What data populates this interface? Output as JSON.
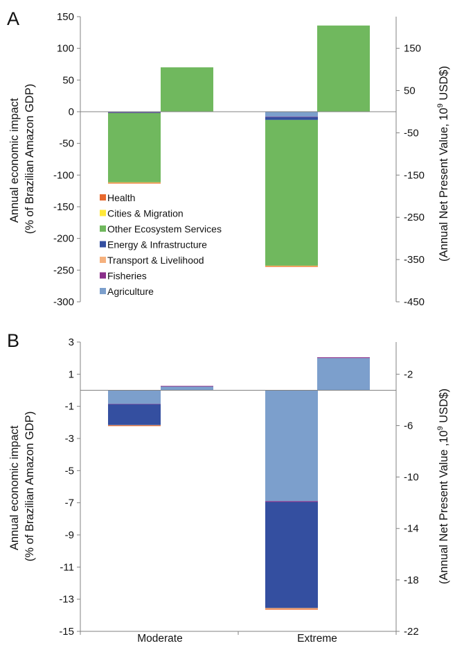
{
  "colors": {
    "health": "#e8692e",
    "cities_migration": "#ffe839",
    "other_ecosystem": "#70b85e",
    "energy_infra": "#344fa0",
    "transport_livelihood": "#f5b17e",
    "fisheries": "#8a2f8a",
    "agriculture": "#7c9fcc",
    "axis": "#808080"
  },
  "chart_data": [
    {
      "type": "bar",
      "stacked": true,
      "panel_label": "A",
      "categories": [
        "Moderate",
        "Extreme"
      ],
      "ylabel_left": [
        "Annual economic impact",
        "(% of Brazilian Amazon GDP)"
      ],
      "ylabel_right": [
        "(Annual Net Present Value, 10",
        "9",
        " USD$)"
      ],
      "ylim_left": [
        -300,
        150
      ],
      "yticks_left": [
        "150",
        "100",
        "50",
        "0",
        "-50",
        "-100",
        "-150",
        "-200",
        "-250",
        "-300"
      ],
      "ylim_right": [
        -450,
        225
      ],
      "yticks_right": [
        {
          "value": 150,
          "label": "150"
        },
        {
          "value": 50,
          "label": "50"
        },
        {
          "value": -50,
          "label": "-50"
        },
        {
          "value": -150,
          "label": "-150"
        },
        {
          "value": -250,
          "label": "-250"
        },
        {
          "value": -350,
          "label": "-350"
        },
        {
          "value": -450,
          "label": "-450"
        }
      ],
      "legend_position": "lower-left",
      "legend": [
        {
          "name": "Health",
          "color": "#e8692e"
        },
        {
          "name": "Cities & Migration",
          "color": "#ffe839"
        },
        {
          "name": "Other Ecosystem Services",
          "color": "#70b85e"
        },
        {
          "name": "Energy & Infrastructure",
          "color": "#344fa0"
        },
        {
          "name": "Transport & Livelihood",
          "color": "#f5b17e"
        },
        {
          "name": "Fisheries",
          "color": "#8a2f8a"
        },
        {
          "name": "Agriculture",
          "color": "#7c9fcc"
        }
      ],
      "series": [
        {
          "name": "Agriculture",
          "color": "#7c9fcc",
          "left": [
            -1.0,
            -8.0
          ],
          "right": [
            0,
            0
          ]
        },
        {
          "name": "Fisheries",
          "color": "#8a2f8a",
          "left": [
            -0.5,
            -0.5
          ],
          "right": [
            0,
            0
          ]
        },
        {
          "name": "Energy & Infrastructure",
          "color": "#344fa0",
          "left": [
            -0.5,
            -4.5
          ],
          "right": [
            0,
            0
          ]
        },
        {
          "name": "Other Ecosystem Services",
          "color": "#70b85e",
          "left": [
            -109.5,
            -230.0
          ],
          "right": [
            70,
            136
          ]
        },
        {
          "name": "Transport & Livelihood",
          "color": "#f5b17e",
          "left": [
            -0.5,
            -0.5
          ],
          "right": [
            0,
            0
          ]
        },
        {
          "name": "Cities & Migration",
          "color": "#ffe839",
          "left": [
            -0.3,
            -0.3
          ],
          "right": [
            0,
            0
          ]
        },
        {
          "name": "Health",
          "color": "#e8692e",
          "left": [
            -0.7,
            -0.7
          ],
          "right": [
            0,
            0
          ]
        }
      ]
    },
    {
      "type": "bar",
      "stacked": true,
      "panel_label": "B",
      "categories": [
        "Moderate",
        "Extreme"
      ],
      "ylabel_left": [
        "Annual economic impact",
        "(% of Brazilian Amazon GDP)"
      ],
      "ylabel_right": [
        "(Annual Net Present Value ,10",
        "9",
        " USD$)"
      ],
      "ylim_left": [
        -15,
        3
      ],
      "yticks_left": [
        "3",
        "1",
        "-1",
        "-3",
        "-5",
        "-7",
        "-9",
        "-11",
        "-13",
        "-15"
      ],
      "ylim_right": [
        -22,
        0.5
      ],
      "yticks_right": [
        {
          "value": -2,
          "label": "-2"
        },
        {
          "value": -6,
          "label": "-6"
        },
        {
          "value": -10,
          "label": "-10"
        },
        {
          "value": -14,
          "label": "-14"
        },
        {
          "value": -18,
          "label": "-18"
        },
        {
          "value": -22,
          "label": "-22"
        }
      ],
      "series": [
        {
          "name": "Agriculture",
          "color": "#7c9fcc",
          "left": [
            -0.85,
            -6.9
          ],
          "right": [
            0.25,
            2.0
          ]
        },
        {
          "name": "Fisheries",
          "color": "#8a2f8a",
          "left": [
            -0.02,
            -0.05
          ],
          "right": [
            0.02,
            0.05
          ]
        },
        {
          "name": "Energy & Infrastructure",
          "color": "#344fa0",
          "left": [
            -1.3,
            -6.6
          ],
          "right": [
            0,
            0
          ]
        },
        {
          "name": "Other Ecosystem Services",
          "color": "#70b85e",
          "left": [
            0,
            0
          ],
          "right": [
            0,
            0
          ]
        },
        {
          "name": "Transport & Livelihood",
          "color": "#f5b17e",
          "left": [
            -0.02,
            -0.05
          ],
          "right": [
            0,
            0
          ]
        },
        {
          "name": "Cities & Migration",
          "color": "#ffe839",
          "left": [
            0,
            0
          ],
          "right": [
            0,
            0
          ]
        },
        {
          "name": "Health",
          "color": "#e8692e",
          "left": [
            -0.03,
            -0.05
          ],
          "right": [
            0,
            0
          ]
        }
      ]
    }
  ]
}
